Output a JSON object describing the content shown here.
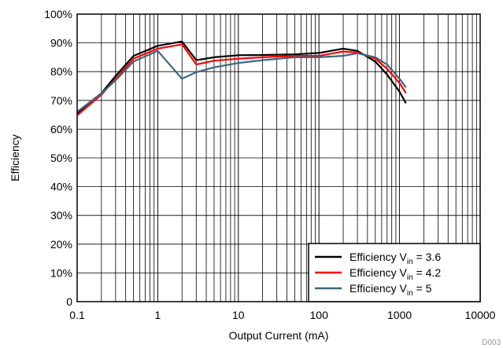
{
  "chart_data": {
    "type": "line",
    "xlabel": "Output Current (mA)",
    "ylabel": "Efficiency",
    "x_scale": "log",
    "xlim": [
      0.1,
      10000
    ],
    "ylim": [
      0,
      100
    ],
    "x_ticks": [
      {
        "value": 0.1,
        "label": "0.1"
      },
      {
        "value": 1,
        "label": "1"
      },
      {
        "value": 10,
        "label": "10"
      },
      {
        "value": 100,
        "label": "100"
      },
      {
        "value": 1000,
        "label": "1000"
      },
      {
        "value": 10000,
        "label": "10000"
      }
    ],
    "y_ticks": [
      {
        "value": 0,
        "label": "0"
      },
      {
        "value": 10,
        "label": "10%"
      },
      {
        "value": 20,
        "label": "20%"
      },
      {
        "value": 30,
        "label": "30%"
      },
      {
        "value": 40,
        "label": "40%"
      },
      {
        "value": 50,
        "label": "50%"
      },
      {
        "value": 60,
        "label": "60%"
      },
      {
        "value": 70,
        "label": "70%"
      },
      {
        "value": 80,
        "label": "80%"
      },
      {
        "value": 90,
        "label": "90%"
      },
      {
        "value": 100,
        "label": "100%"
      }
    ],
    "grid": true,
    "legend_position": "bottom-right",
    "series": [
      {
        "legend_prefix": "Efficiency V",
        "legend_sub": "in",
        "legend_suffix": " = 3.6",
        "color": "#000000",
        "x": [
          0.1,
          0.2,
          0.3,
          0.5,
          1,
          2,
          3,
          5,
          10,
          20,
          50,
          100,
          200,
          300,
          500,
          700,
          1000,
          1200
        ],
        "y": [
          65.5,
          72.5,
          78.5,
          85.5,
          89,
          90.5,
          84,
          85,
          85.7,
          85.8,
          86,
          86.5,
          88,
          87.2,
          83.5,
          79,
          73,
          69
        ]
      },
      {
        "legend_prefix": "Efficiency V",
        "legend_sub": "in",
        "legend_suffix": " = 4.2",
        "color": "#ff0000",
        "x": [
          0.1,
          0.2,
          0.3,
          0.5,
          1,
          2,
          3,
          5,
          10,
          20,
          50,
          100,
          200,
          300,
          500,
          700,
          1000,
          1200
        ],
        "y": [
          64.8,
          72,
          77.5,
          84.5,
          88,
          89.5,
          82.5,
          83.8,
          84.5,
          85,
          85.5,
          85.5,
          87,
          86.6,
          84.5,
          81,
          76,
          72.5
        ]
      },
      {
        "legend_prefix": "Efficiency V",
        "legend_sub": "in",
        "legend_suffix": " = 5",
        "color": "#3b6880",
        "x": [
          0.1,
          0.2,
          0.3,
          0.5,
          1,
          2,
          3,
          5,
          10,
          20,
          50,
          100,
          200,
          300,
          500,
          700,
          1000,
          1200
        ],
        "y": [
          66,
          72.5,
          77,
          83.5,
          87.2,
          77.5,
          79.8,
          81.5,
          83,
          84,
          85,
          85,
          85.5,
          86.4,
          85,
          82.5,
          77.5,
          74.5
        ]
      }
    ]
  },
  "footer": {
    "doc_id": "D003"
  }
}
